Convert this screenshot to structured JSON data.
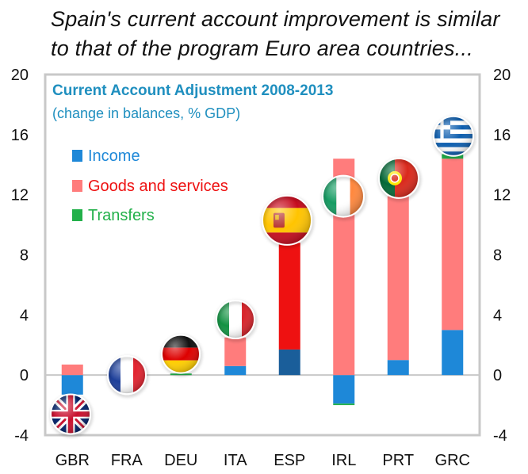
{
  "headline": {
    "line1": "Spain's current account improvement  is similar",
    "line2": "to that of the program Euro area countries..."
  },
  "chart_data": {
    "type": "bar",
    "stacked": true,
    "title": "Current Account Adjustment 2008-2013",
    "subtitle": "(change in balances, % GDP)",
    "categories": [
      "GBR",
      "FRA",
      "DEU",
      "ITA",
      "ESP",
      "IRL",
      "PRT",
      "GRC"
    ],
    "series": [
      {
        "name": "Income",
        "color": "#1e88d8",
        "values": [
          -1.3,
          -0.1,
          0.0,
          0.6,
          1.7,
          -1.9,
          1.0,
          3.0
        ]
      },
      {
        "name": "Goods and services",
        "color": "#ff7c7c",
        "values": [
          0.7,
          0.0,
          0.0,
          1.9,
          7.1,
          14.4,
          10.9,
          11.4
        ]
      },
      {
        "name": "Transfers",
        "color": "#22b04a",
        "values": [
          0.0,
          0.0,
          0.1,
          0.0,
          0.0,
          -0.1,
          0.0,
          0.3
        ]
      }
    ],
    "highlight": {
      "category": "ESP",
      "income_color": "#1a5e9a",
      "goods_color": "#ee1111"
    },
    "flags": [
      "GBR",
      "FRA",
      "DEU",
      "ITA",
      "ESP",
      "IRL",
      "PRT",
      "GRC"
    ],
    "ylim": [
      -4,
      20
    ],
    "yticks": [
      -4,
      0,
      4,
      8,
      12,
      16,
      20
    ],
    "ytick_labels": [
      "-4",
      "0",
      "4",
      "8",
      "12",
      "16",
      "20"
    ],
    "xlabel": "",
    "ylabel": "",
    "legend_position": "top-left"
  }
}
